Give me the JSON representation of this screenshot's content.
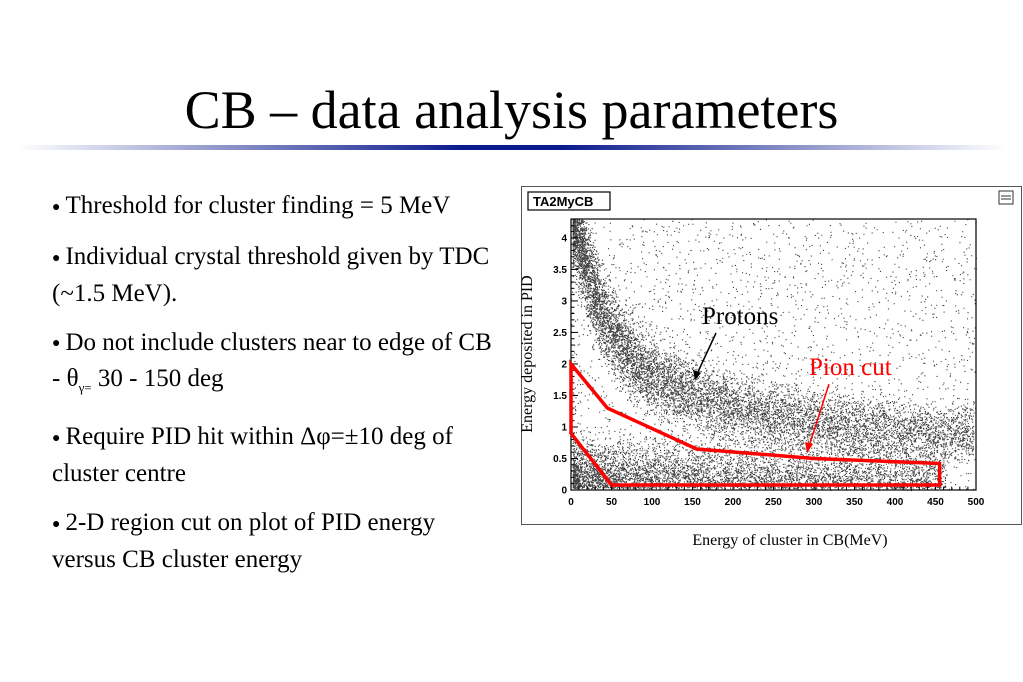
{
  "slide": {
    "title": "CB – data analysis parameters"
  },
  "bullets": [
    {
      "text": "Threshold for cluster finding = 5 MeV"
    },
    {
      "text": "Individual crystal threshold given by TDC (~1.5 MeV)."
    },
    {
      "parts": [
        "Do not include clusters near to edge of CB -  ",
        "θ",
        "γ=",
        " 30 - 150 deg"
      ]
    },
    {
      "text": "Require PID hit within Δφ=±10 deg of cluster centre"
    },
    {
      "text": "2-D region cut on plot of PID energy versus CB cluster energy"
    }
  ],
  "chart_data": {
    "type": "scatter",
    "title": "TA2MyCB",
    "xlabel": "Energy of cluster in CB(MeV)",
    "ylabel": "Energy deposited in PID",
    "xlim": [
      0,
      500
    ],
    "ylim": [
      0,
      4.3
    ],
    "xticks": [
      "0",
      "50",
      "100",
      "150",
      "200",
      "250",
      "300",
      "350",
      "400",
      "450",
      "500"
    ],
    "yticks": [
      "0",
      "0.5",
      "1",
      "1.5",
      "2",
      "2.5",
      "3",
      "3.5",
      "4"
    ],
    "annotations": [
      {
        "text": "Protons",
        "color": "#000000"
      },
      {
        "text": "Pion cut",
        "color": "#ff0000"
      }
    ],
    "pion_cut_polygon": [
      [
        0,
        2.0
      ],
      [
        45,
        1.3
      ],
      [
        155,
        0.65
      ],
      [
        300,
        0.5
      ],
      [
        455,
        0.42
      ],
      [
        455,
        0.08
      ],
      [
        50,
        0.08
      ],
      [
        0,
        0.9
      ]
    ]
  }
}
